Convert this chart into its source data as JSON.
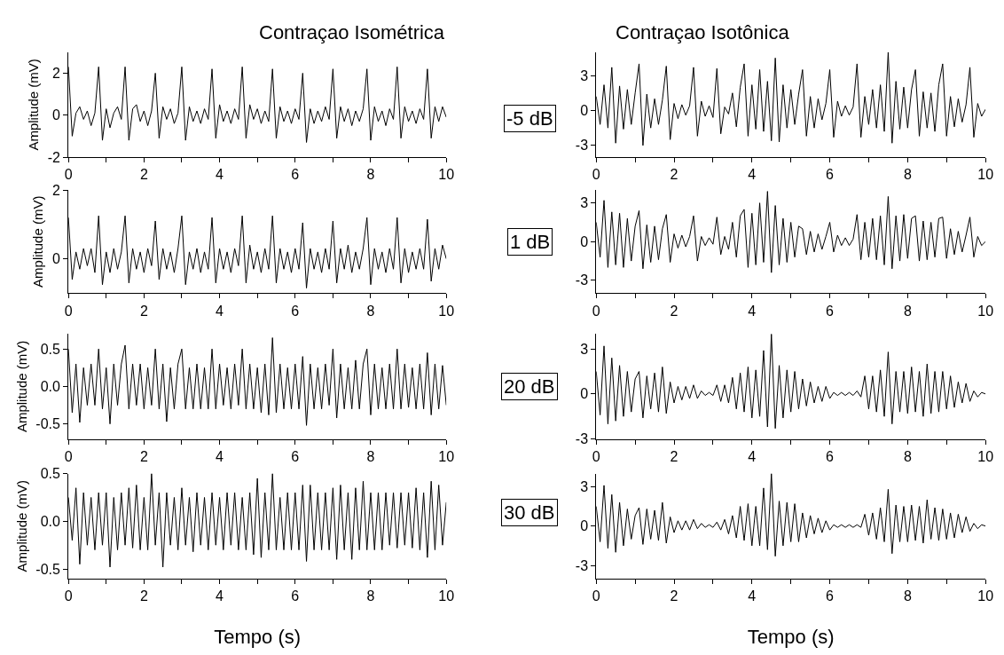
{
  "chart_data": [
    {
      "type": "line",
      "title": "Contraçao Isométrica",
      "ylabel": "Amplitude (mV)",
      "annotations": [
        "-5 dB"
      ],
      "color": "#000000",
      "xlim": [
        0,
        10
      ],
      "ylim": [
        -2,
        3
      ],
      "yticks": [
        -2,
        0,
        2
      ],
      "xticks": [
        0,
        {
          "value": 1,
          "label": null
        },
        2,
        {
          "value": 3,
          "label": null
        },
        4,
        {
          "value": 5,
          "label": null
        },
        6,
        {
          "value": 7,
          "label": null
        },
        8,
        {
          "value": 9,
          "label": null
        },
        10
      ],
      "x": [
        0,
        0.1,
        0.2,
        0.3,
        0.4,
        0.5,
        0.6,
        0.7,
        0.8,
        0.9,
        1,
        1.1,
        1.2,
        1.3,
        1.4,
        1.5,
        1.6,
        1.7,
        1.8,
        1.9,
        2,
        2.1,
        2.2,
        2.3,
        2.4,
        2.5,
        2.6,
        2.7,
        2.8,
        2.9,
        3,
        3.1,
        3.2,
        3.3,
        3.4,
        3.5,
        3.6,
        3.7,
        3.8,
        3.9,
        4,
        4.1,
        4.2,
        4.3,
        4.4,
        4.5,
        4.6,
        4.7,
        4.8,
        4.9,
        5,
        5.1,
        5.2,
        5.3,
        5.4,
        5.5,
        5.6,
        5.7,
        5.8,
        5.9,
        6,
        6.1,
        6.2,
        6.3,
        6.4,
        6.5,
        6.6,
        6.7,
        6.8,
        6.9,
        7,
        7.1,
        7.2,
        7.3,
        7.4,
        7.5,
        7.6,
        7.7,
        7.8,
        7.9,
        8,
        8.1,
        8.2,
        8.3,
        8.4,
        8.5,
        8.6,
        8.7,
        8.8,
        8.9,
        9,
        9.1,
        9.2,
        9.3,
        9.4,
        9.5,
        9.6,
        9.7,
        9.8,
        9.9,
        10
      ],
      "values": [
        2.3,
        -1.0,
        0.1,
        0.4,
        -0.2,
        0.2,
        -0.5,
        0.1,
        2.3,
        -1.2,
        0.3,
        -0.6,
        0.1,
        0.4,
        -0.2,
        2.3,
        -1.2,
        0.3,
        0.5,
        -0.3,
        0.2,
        -0.5,
        0.2,
        2.0,
        -1.1,
        0.4,
        -0.2,
        0.3,
        -0.4,
        0.1,
        2.3,
        -1.2,
        0.4,
        -0.3,
        0.2,
        -0.4,
        0.3,
        -0.2,
        2.2,
        -1.1,
        0.5,
        -0.3,
        0.2,
        -0.4,
        0.3,
        -0.2,
        2.3,
        -1.1,
        0.5,
        -0.2,
        0.3,
        -0.4,
        0.2,
        -0.3,
        2.2,
        -1.1,
        0.4,
        -0.3,
        0.2,
        -0.4,
        0.3,
        -0.2,
        2.0,
        -1.3,
        0.3,
        -0.4,
        0.2,
        -0.3,
        0.4,
        -0.2,
        2.2,
        -1.1,
        0.4,
        -0.3,
        0.3,
        -0.5,
        0.2,
        -0.3,
        0.3,
        2.2,
        -1.2,
        0.4,
        -0.3,
        0.2,
        -0.5,
        0.3,
        -0.2,
        2.3,
        -1.1,
        0.4,
        -0.3,
        0.2,
        -0.4,
        0.3,
        -0.2,
        2.2,
        -1.1,
        0.4,
        -0.3,
        0.4,
        -0.1
      ]
    },
    {
      "type": "line",
      "title": "Contraçao Isotônica",
      "color": "#000000",
      "xlim": [
        0,
        10
      ],
      "ylim": [
        -4,
        5
      ],
      "yticks": [
        -3,
        0,
        3
      ],
      "xticks": [
        0,
        {
          "value": 1,
          "label": null
        },
        2,
        {
          "value": 3,
          "label": null
        },
        4,
        {
          "value": 5,
          "label": null
        },
        6,
        {
          "value": 7,
          "label": null
        },
        8,
        {
          "value": 9,
          "label": null
        },
        10
      ],
      "x": [
        0,
        0.1,
        0.2,
        0.3,
        0.4,
        0.5,
        0.6,
        0.7,
        0.8,
        0.9,
        1,
        1.1,
        1.2,
        1.3,
        1.4,
        1.5,
        1.6,
        1.7,
        1.8,
        1.9,
        2,
        2.1,
        2.2,
        2.3,
        2.4,
        2.5,
        2.6,
        2.7,
        2.8,
        2.9,
        3,
        3.1,
        3.2,
        3.3,
        3.4,
        3.5,
        3.6,
        3.7,
        3.8,
        3.9,
        4,
        4.1,
        4.2,
        4.3,
        4.4,
        4.5,
        4.6,
        4.7,
        4.8,
        4.9,
        5,
        5.1,
        5.2,
        5.3,
        5.4,
        5.5,
        5.6,
        5.7,
        5.8,
        5.9,
        6,
        6.1,
        6.2,
        6.3,
        6.4,
        6.5,
        6.6,
        6.7,
        6.8,
        6.9,
        7,
        7.1,
        7.2,
        7.3,
        7.4,
        7.5,
        7.6,
        7.7,
        7.8,
        7.9,
        8,
        8.1,
        8.2,
        8.3,
        8.4,
        8.5,
        8.6,
        8.7,
        8.8,
        8.9,
        9,
        9.1,
        9.2,
        9.3,
        9.4,
        9.5,
        9.6,
        9.7,
        9.8,
        9.9,
        10
      ],
      "values": [
        1.2,
        -1.2,
        2.2,
        -1.5,
        3.7,
        -2.8,
        2.1,
        -1.6,
        1.8,
        -1.2,
        1.5,
        4.0,
        -3.0,
        1.4,
        -1.5,
        1.0,
        -1.2,
        0.9,
        3.8,
        -2.5,
        0.6,
        -0.7,
        0.5,
        -0.4,
        0.4,
        3.7,
        -2.2,
        0.8,
        -0.5,
        0.4,
        -0.6,
        3.6,
        -2.0,
        0.3,
        -0.3,
        1.5,
        -1.4,
        2.0,
        4.0,
        -2.2,
        2.2,
        -1.6,
        3.5,
        -1.8,
        2.5,
        -2.6,
        4.5,
        -2.7,
        2.2,
        -1.5,
        1.8,
        -1.2,
        1.4,
        3.5,
        -2.2,
        1.2,
        -1.5,
        1.0,
        -0.8,
        0.6,
        3.5,
        -2.3,
        0.8,
        -0.5,
        0.4,
        -0.4,
        0.3,
        4.0,
        -2.3,
        1.2,
        -1.2,
        1.8,
        -1.5,
        2.2,
        -1.8,
        5.0,
        -2.8,
        2.5,
        -1.6,
        2.0,
        -1.5,
        1.8,
        3.5,
        -2.2,
        1.6,
        -1.5,
        1.5,
        -1.8,
        2.2,
        4.0,
        -2.2,
        1.2,
        -1.4,
        1.0,
        -1.0,
        0.5,
        3.7,
        -2.3,
        0.6,
        -0.5,
        0.1
      ]
    },
    {
      "type": "line",
      "ylabel": "Amplitude (mV)",
      "annotations": [
        "1 dB"
      ],
      "color": "#000000",
      "xlim": [
        0,
        10
      ],
      "ylim": [
        -1,
        2
      ],
      "yticks": [
        0,
        2
      ],
      "xticks": [
        0,
        {
          "value": 1,
          "label": null
        },
        2,
        {
          "value": 3,
          "label": null
        },
        4,
        {
          "value": 5,
          "label": null
        },
        6,
        {
          "value": 7,
          "label": null
        },
        8,
        {
          "value": 9,
          "label": null
        },
        10
      ],
      "x": [
        0,
        0.1,
        0.2,
        0.3,
        0.4,
        0.5,
        0.6,
        0.7,
        0.8,
        0.9,
        1,
        1.1,
        1.2,
        1.3,
        1.4,
        1.5,
        1.6,
        1.7,
        1.8,
        1.9,
        2,
        2.1,
        2.2,
        2.3,
        2.4,
        2.5,
        2.6,
        2.7,
        2.8,
        2.9,
        3,
        3.1,
        3.2,
        3.3,
        3.4,
        3.5,
        3.6,
        3.7,
        3.8,
        3.9,
        4,
        4.1,
        4.2,
        4.3,
        4.4,
        4.5,
        4.6,
        4.7,
        4.8,
        4.9,
        5,
        5.1,
        5.2,
        5.3,
        5.4,
        5.5,
        5.6,
        5.7,
        5.8,
        5.9,
        6,
        6.1,
        6.2,
        6.3,
        6.4,
        6.5,
        6.6,
        6.7,
        6.8,
        6.9,
        7,
        7.1,
        7.2,
        7.3,
        7.4,
        7.5,
        7.6,
        7.7,
        7.8,
        7.9,
        8,
        8.1,
        8.2,
        8.3,
        8.4,
        8.5,
        8.6,
        8.7,
        8.8,
        8.9,
        9,
        9.1,
        9.2,
        9.3,
        9.4,
        9.5,
        9.6,
        9.7,
        9.8,
        9.9,
        10
      ],
      "values": [
        1.2,
        -0.6,
        0.2,
        -0.3,
        0.3,
        -0.2,
        0.3,
        -0.4,
        1.25,
        -0.75,
        0.2,
        -0.4,
        0.3,
        -0.3,
        0.2,
        1.25,
        -0.7,
        0.3,
        -0.3,
        0.2,
        -0.4,
        0.3,
        -0.2,
        1.1,
        -0.6,
        0.3,
        -0.3,
        0.2,
        -0.4,
        0.3,
        1.25,
        -0.75,
        0.2,
        -0.3,
        0.3,
        -0.4,
        0.2,
        -0.3,
        1.2,
        -0.7,
        0.3,
        -0.3,
        0.2,
        -0.4,
        0.3,
        -0.2,
        1.25,
        -0.7,
        0.4,
        -0.3,
        0.2,
        -0.4,
        0.3,
        -0.3,
        1.25,
        -0.7,
        0.3,
        -0.3,
        0.2,
        -0.4,
        0.3,
        -0.3,
        1.05,
        -0.85,
        0.3,
        -0.3,
        0.2,
        -0.4,
        0.3,
        -0.3,
        1.1,
        -0.7,
        0.3,
        -0.3,
        0.4,
        -0.4,
        0.2,
        -0.3,
        0.3,
        1.2,
        -0.75,
        0.3,
        -0.3,
        0.2,
        -0.4,
        0.3,
        -0.3,
        1.2,
        -0.7,
        0.3,
        -0.4,
        0.2,
        -0.3,
        0.3,
        -0.3,
        1.15,
        -0.65,
        0.3,
        -0.3,
        0.4,
        0.0
      ]
    },
    {
      "type": "line",
      "color": "#000000",
      "xlim": [
        0,
        10
      ],
      "ylim": [
        -4,
        4
      ],
      "yticks": [
        -3,
        0,
        3
      ],
      "xticks": [
        0,
        {
          "value": 1,
          "label": null
        },
        2,
        {
          "value": 3,
          "label": null
        },
        4,
        {
          "value": 5,
          "label": null
        },
        6,
        {
          "value": 7,
          "label": null
        },
        8,
        {
          "value": 9,
          "label": null
        },
        10
      ],
      "x": [
        0,
        0.1,
        0.2,
        0.3,
        0.4,
        0.5,
        0.6,
        0.7,
        0.8,
        0.9,
        1,
        1.1,
        1.2,
        1.3,
        1.4,
        1.5,
        1.6,
        1.7,
        1.8,
        1.9,
        2,
        2.1,
        2.2,
        2.3,
        2.4,
        2.5,
        2.6,
        2.7,
        2.8,
        2.9,
        3,
        3.1,
        3.2,
        3.3,
        3.4,
        3.5,
        3.6,
        3.7,
        3.8,
        3.9,
        4,
        4.1,
        4.2,
        4.3,
        4.4,
        4.5,
        4.6,
        4.7,
        4.8,
        4.9,
        5,
        5.1,
        5.2,
        5.3,
        5.4,
        5.5,
        5.6,
        5.7,
        5.8,
        5.9,
        6,
        6.1,
        6.2,
        6.3,
        6.4,
        6.5,
        6.6,
        6.7,
        6.8,
        6.9,
        7,
        7.1,
        7.2,
        7.3,
        7.4,
        7.5,
        7.6,
        7.7,
        7.8,
        7.9,
        8,
        8.1,
        8.2,
        8.3,
        8.4,
        8.5,
        8.6,
        8.7,
        8.8,
        8.9,
        9,
        9.1,
        9.2,
        9.3,
        9.4,
        9.5,
        9.6,
        9.7,
        9.8,
        9.9,
        10
      ],
      "values": [
        1.5,
        -1.2,
        3.2,
        -2.0,
        2.3,
        -1.8,
        2.2,
        -2.0,
        1.8,
        -1.5,
        1.2,
        2.4,
        -2.1,
        1.3,
        -1.6,
        1.2,
        -1.4,
        1.0,
        2.1,
        -1.6,
        0.6,
        -0.5,
        0.5,
        -0.4,
        0.4,
        2.0,
        -1.5,
        0.4,
        -0.3,
        0.3,
        -0.2,
        1.9,
        -1.0,
        0.4,
        -0.6,
        1.5,
        -1.2,
        2.0,
        2.5,
        -2.0,
        2.2,
        -1.8,
        3.0,
        -1.6,
        3.9,
        -2.4,
        2.8,
        -1.8,
        1.8,
        -1.6,
        1.5,
        -1.2,
        1.2,
        1.0,
        -1.0,
        0.8,
        -0.8,
        0.6,
        -0.6,
        0.4,
        1.5,
        -0.8,
        0.5,
        -0.3,
        0.3,
        -0.3,
        0.2,
        2.1,
        -1.4,
        1.5,
        -1.2,
        1.8,
        -1.4,
        2.0,
        -1.8,
        3.5,
        -2.1,
        2.0,
        -1.5,
        2.1,
        -1.3,
        1.8,
        2.0,
        -1.5,
        1.6,
        -1.4,
        1.5,
        -1.2,
        1.8,
        1.9,
        -1.3,
        1.0,
        -1.0,
        0.8,
        -0.8,
        0.5,
        1.9,
        -1.2,
        0.4,
        -0.3,
        0.0
      ]
    },
    {
      "type": "line",
      "ylabel": "Amplitude (mV)",
      "annotations": [
        "20 dB"
      ],
      "color": "#000000",
      "xlim": [
        0,
        10
      ],
      "ylim": [
        -0.7,
        0.7
      ],
      "yticks": [
        -0.5,
        {
          "value": 0,
          "label": "0.0"
        },
        0.5
      ],
      "xticks": [
        0,
        {
          "value": 1,
          "label": null
        },
        2,
        {
          "value": 3,
          "label": null
        },
        4,
        {
          "value": 5,
          "label": null
        },
        6,
        {
          "value": 7,
          "label": null
        },
        8,
        {
          "value": 9,
          "label": null
        },
        10
      ],
      "x": [
        0,
        0.1,
        0.2,
        0.3,
        0.4,
        0.5,
        0.6,
        0.7,
        0.8,
        0.9,
        1,
        1.1,
        1.2,
        1.3,
        1.4,
        1.5,
        1.6,
        1.7,
        1.8,
        1.9,
        2,
        2.1,
        2.2,
        2.3,
        2.4,
        2.5,
        2.6,
        2.7,
        2.8,
        2.9,
        3,
        3.1,
        3.2,
        3.3,
        3.4,
        3.5,
        3.6,
        3.7,
        3.8,
        3.9,
        4,
        4.1,
        4.2,
        4.3,
        4.4,
        4.5,
        4.6,
        4.7,
        4.8,
        4.9,
        5,
        5.1,
        5.2,
        5.3,
        5.4,
        5.5,
        5.6,
        5.7,
        5.8,
        5.9,
        6,
        6.1,
        6.2,
        6.3,
        6.4,
        6.5,
        6.6,
        6.7,
        6.8,
        6.9,
        7,
        7.1,
        7.2,
        7.3,
        7.4,
        7.5,
        7.6,
        7.7,
        7.8,
        7.9,
        8,
        8.1,
        8.2,
        8.3,
        8.4,
        8.5,
        8.6,
        8.7,
        8.8,
        8.9,
        9,
        9.1,
        9.2,
        9.3,
        9.4,
        9.5,
        9.6,
        9.7,
        9.8,
        9.9,
        10
      ],
      "values": [
        0.5,
        -0.35,
        0.3,
        -0.48,
        0.25,
        -0.25,
        0.3,
        -0.25,
        0.5,
        -0.3,
        0.25,
        -0.5,
        0.3,
        -0.25,
        0.3,
        0.55,
        -0.3,
        0.3,
        -0.25,
        0.3,
        -0.3,
        0.25,
        -0.25,
        0.5,
        -0.3,
        0.3,
        -0.47,
        0.25,
        -0.3,
        0.3,
        0.5,
        -0.3,
        0.25,
        -0.3,
        0.3,
        -0.3,
        0.25,
        -0.3,
        0.5,
        -0.3,
        0.3,
        -0.25,
        0.25,
        -0.3,
        0.3,
        -0.25,
        0.5,
        -0.3,
        0.3,
        -0.3,
        0.25,
        -0.35,
        0.3,
        -0.38,
        0.65,
        -0.35,
        0.3,
        -0.3,
        0.25,
        -0.3,
        0.3,
        -0.3,
        0.4,
        -0.52,
        0.3,
        -0.3,
        0.25,
        -0.3,
        0.3,
        -0.25,
        0.5,
        -0.42,
        0.3,
        -0.3,
        0.25,
        -0.3,
        0.35,
        -0.3,
        0.3,
        0.5,
        -0.38,
        0.3,
        -0.3,
        0.25,
        -0.3,
        0.3,
        -0.3,
        0.5,
        -0.3,
        0.3,
        -0.28,
        0.25,
        -0.3,
        0.3,
        -0.3,
        0.45,
        -0.38,
        0.3,
        -0.3,
        0.28,
        -0.25
      ]
    },
    {
      "type": "line",
      "color": "#000000",
      "xlim": [
        0,
        10
      ],
      "ylim": [
        -3,
        4
      ],
      "yticks": [
        -3,
        0,
        3
      ],
      "xticks": [
        0,
        {
          "value": 1,
          "label": null
        },
        2,
        {
          "value": 3,
          "label": null
        },
        4,
        {
          "value": 5,
          "label": null
        },
        6,
        {
          "value": 7,
          "label": null
        },
        8,
        {
          "value": 9,
          "label": null
        },
        10
      ],
      "x": [
        0,
        0.1,
        0.2,
        0.3,
        0.4,
        0.5,
        0.6,
        0.7,
        0.8,
        0.9,
        1,
        1.1,
        1.2,
        1.3,
        1.4,
        1.5,
        1.6,
        1.7,
        1.8,
        1.9,
        2,
        2.1,
        2.2,
        2.3,
        2.4,
        2.5,
        2.6,
        2.7,
        2.8,
        2.9,
        3,
        3.1,
        3.2,
        3.3,
        3.4,
        3.5,
        3.6,
        3.7,
        3.8,
        3.9,
        4,
        4.1,
        4.2,
        4.3,
        4.4,
        4.5,
        4.6,
        4.7,
        4.8,
        4.9,
        5,
        5.1,
        5.2,
        5.3,
        5.4,
        5.5,
        5.6,
        5.7,
        5.8,
        5.9,
        6,
        6.1,
        6.2,
        6.3,
        6.4,
        6.5,
        6.6,
        6.7,
        6.8,
        6.9,
        7,
        7.1,
        7.2,
        7.3,
        7.4,
        7.5,
        7.6,
        7.7,
        7.8,
        7.9,
        8,
        8.1,
        8.2,
        8.3,
        8.4,
        8.5,
        8.6,
        8.7,
        8.8,
        8.9,
        9,
        9.1,
        9.2,
        9.3,
        9.4,
        9.5,
        9.6,
        9.7,
        9.8,
        9.9,
        10
      ],
      "values": [
        1.5,
        -1.4,
        3.2,
        -2.0,
        2.4,
        -1.8,
        1.9,
        -1.5,
        1.5,
        -1.2,
        1.0,
        1.5,
        -1.6,
        1.2,
        -1.0,
        1.4,
        -1.2,
        1.8,
        -1.3,
        0.8,
        -0.6,
        0.5,
        -0.4,
        0.5,
        -0.3,
        0.6,
        -0.3,
        0.2,
        -0.1,
        0.1,
        -0.1,
        0.6,
        -0.5,
        0.6,
        -0.6,
        1.1,
        -1.0,
        1.4,
        -1.2,
        1.8,
        -1.6,
        1.6,
        -1.5,
        2.9,
        -2.2,
        4.0,
        -2.3,
        1.9,
        -1.6,
        1.6,
        -1.2,
        1.5,
        -1.0,
        1.0,
        -0.8,
        0.8,
        -0.6,
        0.5,
        -0.5,
        0.5,
        -0.3,
        0.1,
        -0.1,
        0.1,
        -0.1,
        0.1,
        -0.1,
        0.2,
        -0.2,
        1.2,
        -1.0,
        1.2,
        -1.2,
        1.6,
        -1.5,
        2.8,
        -2.0,
        1.5,
        -1.2,
        1.5,
        -1.3,
        1.8,
        -1.2,
        1.5,
        -1.5,
        2.0,
        -1.3,
        1.5,
        -1.2,
        1.5,
        -1.0,
        1.2,
        -0.9,
        0.8,
        -0.6,
        0.7,
        -0.5,
        0.2,
        -0.2,
        0.1,
        0.0
      ]
    },
    {
      "type": "line",
      "ylabel": "Amplitude (mV)",
      "xlabel": "Tempo (s)",
      "annotations": [
        "30 dB"
      ],
      "color": "#000000",
      "xlim": [
        0,
        10
      ],
      "ylim": [
        -0.6,
        0.5
      ],
      "yticks": [
        -0.5,
        {
          "value": 0,
          "label": "0.0"
        },
        0.5
      ],
      "xticks": [
        0,
        {
          "value": 1,
          "label": null
        },
        2,
        {
          "value": 3,
          "label": null
        },
        4,
        {
          "value": 5,
          "label": null
        },
        6,
        {
          "value": 7,
          "label": null
        },
        8,
        {
          "value": 9,
          "label": null
        },
        10
      ],
      "x": [
        0,
        0.1,
        0.2,
        0.3,
        0.4,
        0.5,
        0.6,
        0.7,
        0.8,
        0.9,
        1,
        1.1,
        1.2,
        1.3,
        1.4,
        1.5,
        1.6,
        1.7,
        1.8,
        1.9,
        2,
        2.1,
        2.2,
        2.3,
        2.4,
        2.5,
        2.6,
        2.7,
        2.8,
        2.9,
        3,
        3.1,
        3.2,
        3.3,
        3.4,
        3.5,
        3.6,
        3.7,
        3.8,
        3.9,
        4,
        4.1,
        4.2,
        4.3,
        4.4,
        4.5,
        4.6,
        4.7,
        4.8,
        4.9,
        5,
        5.1,
        5.2,
        5.3,
        5.4,
        5.5,
        5.6,
        5.7,
        5.8,
        5.9,
        6,
        6.1,
        6.2,
        6.3,
        6.4,
        6.5,
        6.6,
        6.7,
        6.8,
        6.9,
        7,
        7.1,
        7.2,
        7.3,
        7.4,
        7.5,
        7.6,
        7.7,
        7.8,
        7.9,
        8,
        8.1,
        8.2,
        8.3,
        8.4,
        8.5,
        8.6,
        8.7,
        8.8,
        8.9,
        9,
        9.1,
        9.2,
        9.3,
        9.4,
        9.5,
        9.6,
        9.7,
        9.8,
        9.9,
        10
      ],
      "values": [
        0.25,
        -0.2,
        0.35,
        -0.45,
        0.3,
        -0.25,
        0.25,
        -0.3,
        0.3,
        -0.25,
        0.3,
        -0.48,
        0.25,
        -0.3,
        0.3,
        -0.25,
        0.35,
        -0.28,
        0.38,
        -0.3,
        0.25,
        -0.3,
        0.5,
        -0.25,
        0.3,
        -0.48,
        0.3,
        -0.25,
        0.25,
        -0.3,
        0.35,
        -0.25,
        0.25,
        -0.32,
        0.3,
        -0.25,
        0.25,
        -0.3,
        0.3,
        -0.25,
        0.25,
        -0.3,
        0.3,
        -0.25,
        0.3,
        -0.3,
        0.25,
        -0.3,
        0.3,
        -0.35,
        0.45,
        -0.38,
        0.3,
        -0.3,
        0.5,
        -0.3,
        0.25,
        -0.3,
        0.3,
        -0.3,
        0.3,
        -0.3,
        0.38,
        -0.42,
        0.38,
        -0.3,
        0.3,
        -0.3,
        0.3,
        -0.3,
        0.35,
        -0.4,
        0.38,
        -0.3,
        0.3,
        -0.4,
        0.35,
        -0.3,
        0.42,
        -0.3,
        0.3,
        -0.3,
        0.3,
        -0.3,
        0.3,
        -0.25,
        0.3,
        -0.28,
        0.3,
        -0.25,
        0.3,
        -0.28,
        0.35,
        -0.3,
        0.3,
        -0.38,
        0.42,
        -0.3,
        0.38,
        -0.25,
        0.2
      ]
    },
    {
      "type": "line",
      "xlabel": "Tempo (s)",
      "color": "#000000",
      "xlim": [
        0,
        10
      ],
      "ylim": [
        -4,
        4
      ],
      "yticks": [
        -3,
        0,
        3
      ],
      "xticks": [
        0,
        {
          "value": 1,
          "label": null
        },
        2,
        {
          "value": 3,
          "label": null
        },
        4,
        {
          "value": 5,
          "label": null
        },
        6,
        {
          "value": 7,
          "label": null
        },
        8,
        {
          "value": 9,
          "label": null
        },
        10
      ],
      "x": [
        0,
        0.1,
        0.2,
        0.3,
        0.4,
        0.5,
        0.6,
        0.7,
        0.8,
        0.9,
        1,
        1.1,
        1.2,
        1.3,
        1.4,
        1.5,
        1.6,
        1.7,
        1.8,
        1.9,
        2,
        2.1,
        2.2,
        2.3,
        2.4,
        2.5,
        2.6,
        2.7,
        2.8,
        2.9,
        3,
        3.1,
        3.2,
        3.3,
        3.4,
        3.5,
        3.6,
        3.7,
        3.8,
        3.9,
        4,
        4.1,
        4.2,
        4.3,
        4.4,
        4.5,
        4.6,
        4.7,
        4.8,
        4.9,
        5,
        5.1,
        5.2,
        5.3,
        5.4,
        5.5,
        5.6,
        5.7,
        5.8,
        5.9,
        6,
        6.1,
        6.2,
        6.3,
        6.4,
        6.5,
        6.6,
        6.7,
        6.8,
        6.9,
        7,
        7.1,
        7.2,
        7.3,
        7.4,
        7.5,
        7.6,
        7.7,
        7.8,
        7.9,
        8,
        8.1,
        8.2,
        8.3,
        8.4,
        8.5,
        8.6,
        8.7,
        8.8,
        8.9,
        9,
        9.1,
        9.2,
        9.3,
        9.4,
        9.5,
        9.6,
        9.7,
        9.8,
        9.9,
        10
      ],
      "values": [
        1.5,
        -1.2,
        3.1,
        -1.7,
        2.4,
        -2.0,
        1.8,
        -1.5,
        1.3,
        -1.0,
        0.8,
        1.4,
        -1.4,
        1.3,
        -1.0,
        1.2,
        -1.1,
        1.8,
        -1.3,
        0.7,
        -0.5,
        0.4,
        -0.3,
        0.4,
        -0.3,
        0.5,
        -0.2,
        0.2,
        -0.1,
        0.1,
        -0.1,
        0.3,
        -0.3,
        0.5,
        -0.6,
        0.8,
        -0.9,
        1.5,
        -1.1,
        1.7,
        -1.5,
        1.5,
        -1.5,
        2.9,
        -1.8,
        4.0,
        -2.3,
        1.9,
        -1.5,
        1.8,
        -1.2,
        1.7,
        -1.2,
        1.0,
        -0.9,
        0.8,
        -0.6,
        0.6,
        -0.5,
        0.4,
        -0.3,
        0.1,
        -0.1,
        0.1,
        -0.1,
        0.1,
        -0.1,
        0.1,
        -0.1,
        0.9,
        -0.7,
        1.0,
        -1.0,
        1.4,
        -1.2,
        2.8,
        -2.1,
        1.6,
        -1.2,
        1.5,
        -1.2,
        1.6,
        -1.1,
        1.5,
        -1.3,
        2.0,
        -1.0,
        1.4,
        -1.1,
        1.3,
        -1.0,
        1.0,
        -0.9,
        0.9,
        -0.5,
        0.7,
        -0.4,
        0.2,
        -0.2,
        0.1,
        0.0
      ]
    }
  ]
}
